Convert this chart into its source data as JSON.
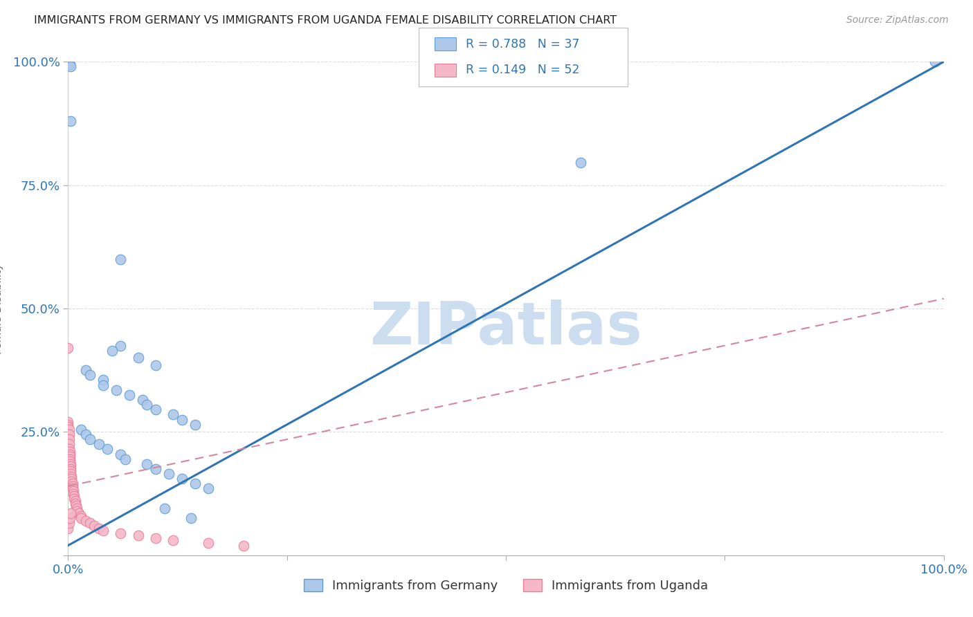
{
  "title": "IMMIGRANTS FROM GERMANY VS IMMIGRANTS FROM UGANDA FEMALE DISABILITY CORRELATION CHART",
  "source": "Source: ZipAtlas.com",
  "ylabel": "Female Disability",
  "xlim": [
    0.0,
    1.0
  ],
  "ylim": [
    0.0,
    1.0
  ],
  "germany_color": "#adc8e8",
  "germany_edge_color": "#5b9bd5",
  "uganda_color": "#f4b8c8",
  "uganda_edge_color": "#e87d9a",
  "germany_line_color": "#2e75b6",
  "uganda_line_color": "#d4879a",
  "germany_R": 0.788,
  "germany_N": 37,
  "uganda_R": 0.149,
  "uganda_N": 52,
  "legend_color": "#2e75b6",
  "watermark": "ZIPatlas",
  "watermark_color": "#ccddef",
  "germany_line_x0": 0.0,
  "germany_line_y0": 0.02,
  "germany_line_x1": 1.0,
  "germany_line_y1": 1.0,
  "uganda_line_x0": 0.0,
  "uganda_line_y0": 0.14,
  "uganda_line_x1": 1.0,
  "uganda_line_y1": 0.52,
  "germany_points": [
    [
      0.002,
      0.995
    ],
    [
      0.003,
      0.88
    ],
    [
      0.06,
      0.6
    ],
    [
      0.06,
      0.425
    ],
    [
      0.05,
      0.415
    ],
    [
      0.08,
      0.4
    ],
    [
      0.1,
      0.385
    ],
    [
      0.02,
      0.375
    ],
    [
      0.025,
      0.365
    ],
    [
      0.04,
      0.355
    ],
    [
      0.04,
      0.345
    ],
    [
      0.055,
      0.335
    ],
    [
      0.07,
      0.325
    ],
    [
      0.085,
      0.315
    ],
    [
      0.09,
      0.305
    ],
    [
      0.1,
      0.295
    ],
    [
      0.12,
      0.285
    ],
    [
      0.13,
      0.275
    ],
    [
      0.145,
      0.265
    ],
    [
      0.015,
      0.255
    ],
    [
      0.02,
      0.245
    ],
    [
      0.025,
      0.235
    ],
    [
      0.035,
      0.225
    ],
    [
      0.045,
      0.215
    ],
    [
      0.06,
      0.205
    ],
    [
      0.065,
      0.195
    ],
    [
      0.09,
      0.185
    ],
    [
      0.1,
      0.175
    ],
    [
      0.115,
      0.165
    ],
    [
      0.13,
      0.155
    ],
    [
      0.145,
      0.145
    ],
    [
      0.16,
      0.135
    ],
    [
      0.11,
      0.095
    ],
    [
      0.14,
      0.075
    ],
    [
      0.585,
      0.795
    ],
    [
      0.99,
      1.0
    ],
    [
      0.003,
      0.99
    ]
  ],
  "uganda_points": [
    [
      0.0,
      0.42
    ],
    [
      0.0,
      0.27
    ],
    [
      0.0,
      0.265
    ],
    [
      0.0,
      0.26
    ],
    [
      0.001,
      0.255
    ],
    [
      0.001,
      0.245
    ],
    [
      0.001,
      0.235
    ],
    [
      0.001,
      0.225
    ],
    [
      0.001,
      0.215
    ],
    [
      0.002,
      0.21
    ],
    [
      0.002,
      0.205
    ],
    [
      0.002,
      0.2
    ],
    [
      0.002,
      0.195
    ],
    [
      0.002,
      0.19
    ],
    [
      0.003,
      0.185
    ],
    [
      0.003,
      0.18
    ],
    [
      0.003,
      0.175
    ],
    [
      0.003,
      0.17
    ],
    [
      0.003,
      0.165
    ],
    [
      0.004,
      0.16
    ],
    [
      0.004,
      0.155
    ],
    [
      0.004,
      0.15
    ],
    [
      0.005,
      0.145
    ],
    [
      0.005,
      0.14
    ],
    [
      0.005,
      0.135
    ],
    [
      0.006,
      0.13
    ],
    [
      0.006,
      0.125
    ],
    [
      0.007,
      0.12
    ],
    [
      0.007,
      0.115
    ],
    [
      0.008,
      0.11
    ],
    [
      0.008,
      0.105
    ],
    [
      0.009,
      0.1
    ],
    [
      0.01,
      0.095
    ],
    [
      0.01,
      0.09
    ],
    [
      0.012,
      0.085
    ],
    [
      0.015,
      0.08
    ],
    [
      0.015,
      0.075
    ],
    [
      0.02,
      0.07
    ],
    [
      0.025,
      0.065
    ],
    [
      0.03,
      0.06
    ],
    [
      0.035,
      0.055
    ],
    [
      0.04,
      0.05
    ],
    [
      0.06,
      0.045
    ],
    [
      0.08,
      0.04
    ],
    [
      0.1,
      0.035
    ],
    [
      0.12,
      0.03
    ],
    [
      0.16,
      0.025
    ],
    [
      0.2,
      0.02
    ],
    [
      0.0,
      0.055
    ],
    [
      0.001,
      0.065
    ],
    [
      0.002,
      0.075
    ],
    [
      0.003,
      0.085
    ]
  ]
}
